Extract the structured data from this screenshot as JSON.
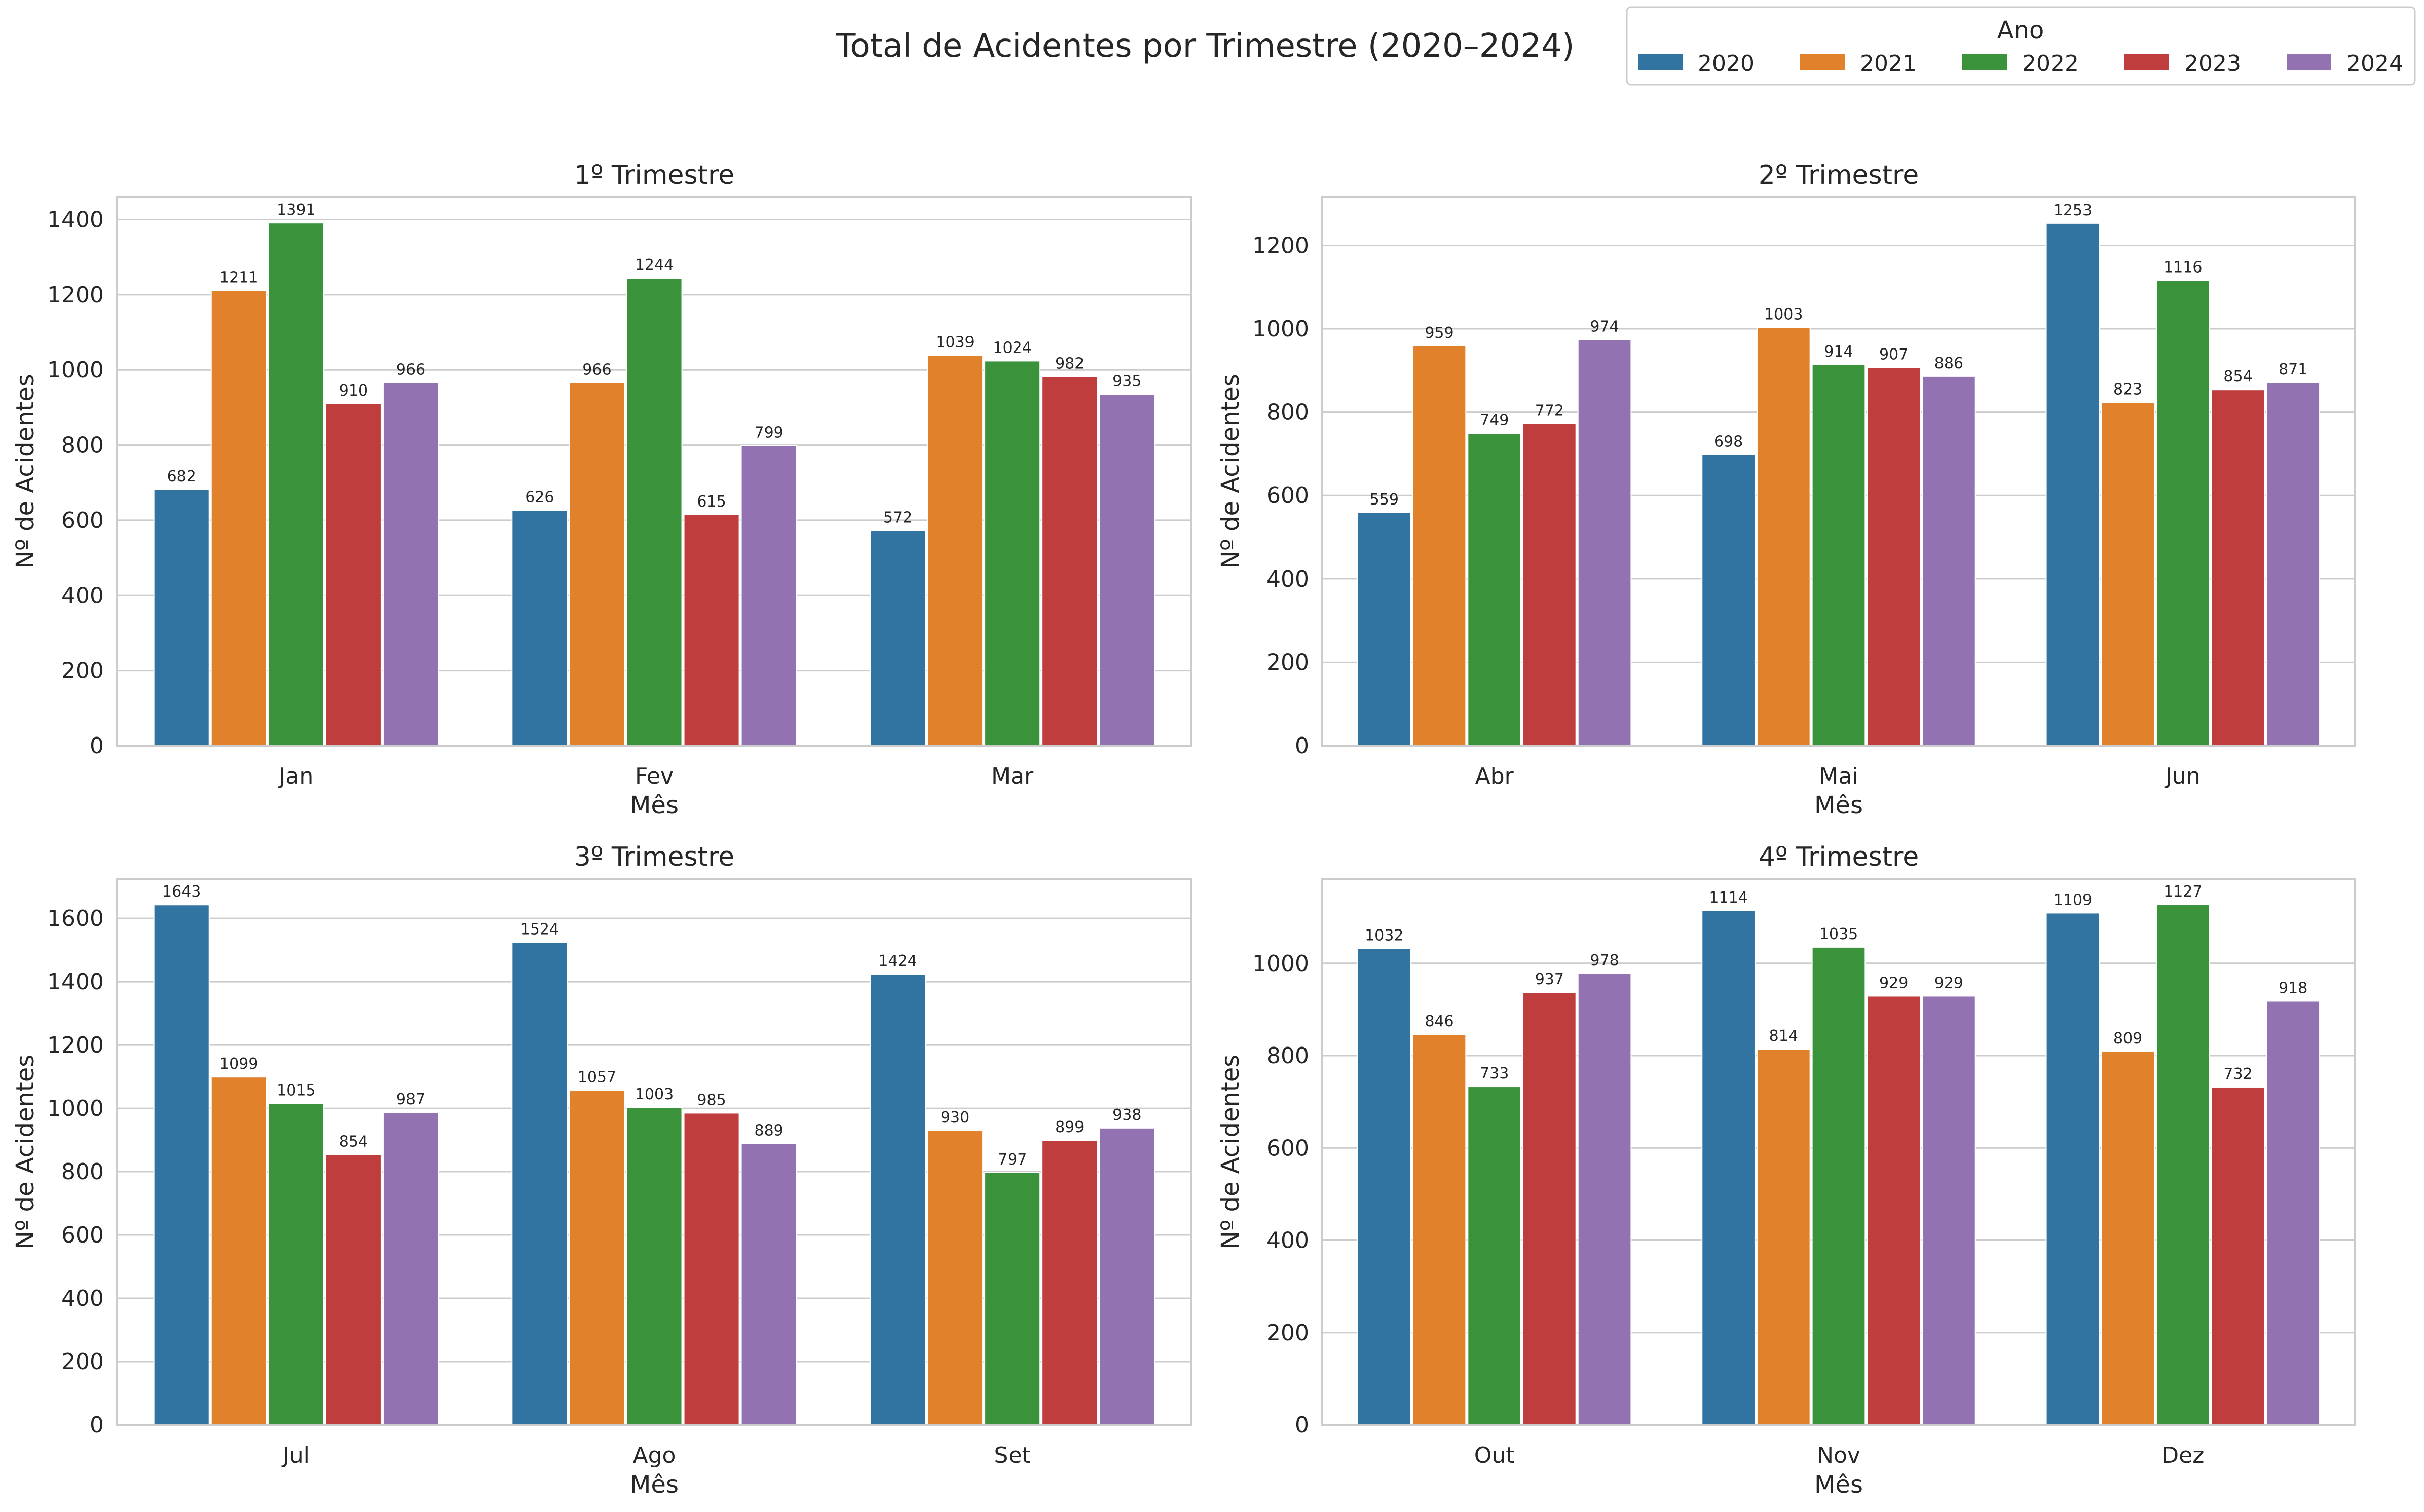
{
  "figure": {
    "title": "Total de Acidentes por Trimestre (2020–2024)"
  },
  "legend": {
    "title": "Ano",
    "entries": [
      {
        "label": "2020",
        "color": "#3274a1"
      },
      {
        "label": "2021",
        "color": "#e1812c"
      },
      {
        "label": "2022",
        "color": "#3a923a"
      },
      {
        "label": "2023",
        "color": "#c03d3e"
      },
      {
        "label": "2024",
        "color": "#9372b2"
      }
    ],
    "placement": "top-right"
  },
  "chart_data": [
    {
      "type": "bar",
      "title": "1º Trimestre",
      "xlabel": "Mês",
      "ylabel": "Nº de Acidentes",
      "categories": [
        "Jan",
        "Fev",
        "Mar"
      ],
      "ylim": [
        0,
        1460
      ],
      "yticks": [
        0,
        200,
        400,
        600,
        800,
        1000,
        1200,
        1400
      ],
      "grid": true,
      "series": [
        {
          "name": "2020",
          "values": [
            682,
            626,
            572
          ]
        },
        {
          "name": "2021",
          "values": [
            1211,
            966,
            1039
          ]
        },
        {
          "name": "2022",
          "values": [
            1391,
            1244,
            1024
          ]
        },
        {
          "name": "2023",
          "values": [
            910,
            615,
            982
          ]
        },
        {
          "name": "2024",
          "values": [
            966,
            799,
            935
          ]
        }
      ]
    },
    {
      "type": "bar",
      "title": "2º Trimestre",
      "xlabel": "Mês",
      "ylabel": "Nº de Acidentes",
      "categories": [
        "Abr",
        "Mai",
        "Jun"
      ],
      "ylim": [
        0,
        1316
      ],
      "yticks": [
        0,
        200,
        400,
        600,
        800,
        1000,
        1200
      ],
      "grid": true,
      "series": [
        {
          "name": "2020",
          "values": [
            559,
            698,
            1253
          ]
        },
        {
          "name": "2021",
          "values": [
            959,
            1003,
            823
          ]
        },
        {
          "name": "2022",
          "values": [
            749,
            914,
            1116
          ]
        },
        {
          "name": "2023",
          "values": [
            772,
            907,
            854
          ]
        },
        {
          "name": "2024",
          "values": [
            974,
            886,
            871
          ]
        }
      ]
    },
    {
      "type": "bar",
      "title": "3º Trimestre",
      "xlabel": "Mês",
      "ylabel": "Nº de Acidentes",
      "categories": [
        "Jul",
        "Ago",
        "Set"
      ],
      "ylim": [
        0,
        1725
      ],
      "yticks": [
        0,
        200,
        400,
        600,
        800,
        1000,
        1200,
        1400,
        1600
      ],
      "grid": true,
      "series": [
        {
          "name": "2020",
          "values": [
            1643,
            1524,
            1424
          ]
        },
        {
          "name": "2021",
          "values": [
            1099,
            1057,
            930
          ]
        },
        {
          "name": "2022",
          "values": [
            1015,
            1003,
            797
          ]
        },
        {
          "name": "2023",
          "values": [
            854,
            985,
            899
          ]
        },
        {
          "name": "2024",
          "values": [
            987,
            889,
            938
          ]
        }
      ]
    },
    {
      "type": "bar",
      "title": "4º Trimestre",
      "xlabel": "Mês",
      "ylabel": "Nº de Acidentes",
      "categories": [
        "Out",
        "Nov",
        "Dez"
      ],
      "ylim": [
        0,
        1183
      ],
      "yticks": [
        0,
        200,
        400,
        600,
        800,
        1000
      ],
      "grid": true,
      "series": [
        {
          "name": "2020",
          "values": [
            1032,
            1114,
            1109
          ]
        },
        {
          "name": "2021",
          "values": [
            846,
            814,
            809
          ]
        },
        {
          "name": "2022",
          "values": [
            733,
            1035,
            1127
          ]
        },
        {
          "name": "2023",
          "values": [
            937,
            929,
            732
          ]
        },
        {
          "name": "2024",
          "values": [
            978,
            929,
            918
          ]
        }
      ]
    }
  ]
}
